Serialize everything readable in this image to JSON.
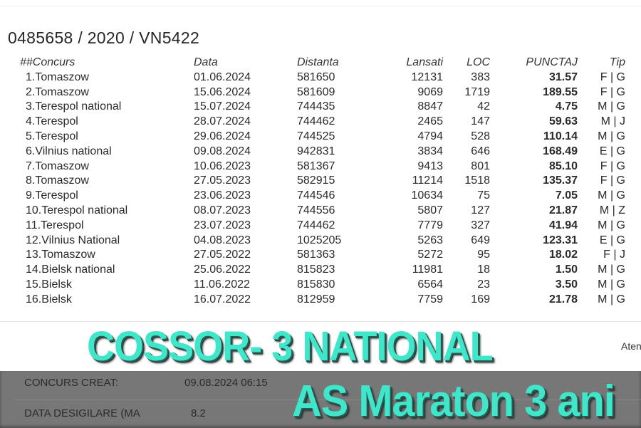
{
  "title": "0485658 / 2020 / VN5422",
  "columns": [
    "##Concurs",
    "Data",
    "Distanta",
    "Lansati",
    "LOC",
    "PUNCTAJ",
    "Tip"
  ],
  "rows": [
    [
      "1.Tomaszow",
      "01.06.2024",
      "581650",
      "12131",
      "383",
      "31.57",
      "F | G"
    ],
    [
      "2.Tomaszow",
      "15.06.2024",
      "581609",
      "9069",
      "1719",
      "189.55",
      "F | G"
    ],
    [
      "3.Terespol national",
      "15.07.2024",
      "744435",
      "8847",
      "42",
      "4.75",
      "M | G"
    ],
    [
      "4.Terespol",
      "28.07.2024",
      "744462",
      "2465",
      "147",
      "59.63",
      "M | J"
    ],
    [
      "5.Terespol",
      "29.06.2024",
      "744525",
      "4794",
      "528",
      "110.14",
      "M | G"
    ],
    [
      "6.Vilnius national",
      "09.08.2024",
      "942831",
      "3834",
      "646",
      "168.49",
      "E | G"
    ],
    [
      "7.Tomaszow",
      "10.06.2023",
      "581367",
      "9413",
      "801",
      "85.10",
      "F | G"
    ],
    [
      "8.Tomaszow",
      "27.05.2023",
      "582915",
      "11214",
      "1518",
      "135.37",
      "F | G"
    ],
    [
      "9.Terespol",
      "23.06.2023",
      "744546",
      "10634",
      "75",
      "7.05",
      "M | G"
    ],
    [
      "10.Terespol national",
      "08.07.2023",
      "744556",
      "5807",
      "127",
      "21.87",
      "M | Z"
    ],
    [
      "11.Terespol",
      "23.07.2023",
      "744462",
      "7779",
      "327",
      "41.94",
      "M | G"
    ],
    [
      "12.Vilnius National",
      "04.08.2023",
      "1025205",
      "5263",
      "649",
      "123.31",
      "E | G"
    ],
    [
      "13.Tomaszow",
      "27.05.2022",
      "581363",
      "5272",
      "95",
      "18.02",
      "F | J"
    ],
    [
      "14.Bielsk national",
      "25.06.2022",
      "815823",
      "11981",
      "18",
      "1.50",
      "M | G"
    ],
    [
      "15.Bielsk",
      "11.06.2022",
      "815830",
      "6564",
      "23",
      "3.50",
      "M | G"
    ],
    [
      "16.Bielsk",
      "16.07.2022",
      "812959",
      "7759",
      "169",
      "21.78",
      "M | G"
    ]
  ],
  "side_text": "Aten",
  "details": {
    "created_label": "CONCURS CREAT:",
    "created_value": "09.08.2024 06:15",
    "unseal_label": "DATA DESIGILARE (MA",
    "unseal_value": "8.2"
  },
  "overlay": {
    "line1": "COSSOR- 3 NATIONAL",
    "line2": "AS Maraton 3 ani",
    "color": "#3fe6c9"
  }
}
